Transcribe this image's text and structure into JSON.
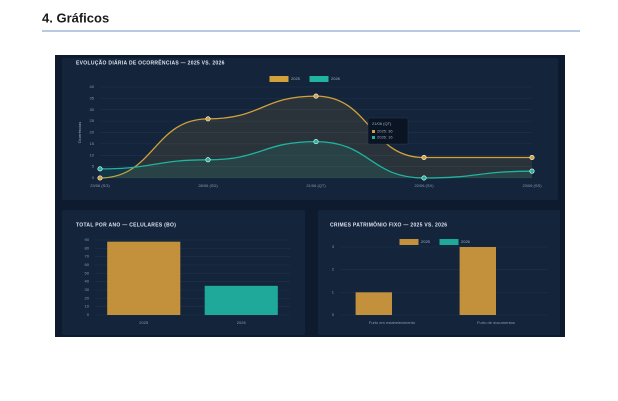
{
  "heading": "4. Gráficos",
  "chart_data": [
    {
      "type": "line",
      "title": "EVOLUÇÃO DIÁRIA DE OCORRÊNCIAS — 2025 VS. 2026",
      "y_label": "Ocorrências",
      "categories": [
        "23/06 (SG)",
        "28/06 (SD)",
        "21/06 (QT)",
        "22/06 (SX)",
        "23/06 (SS)"
      ],
      "series": [
        {
          "name": "2025",
          "color": "#d2a23a",
          "values": [
            0,
            26,
            36,
            9,
            9
          ]
        },
        {
          "name": "2026",
          "color": "#1fb3a0",
          "values": [
            4,
            8,
            16,
            0,
            3
          ]
        }
      ],
      "ylim": [
        0,
        40
      ],
      "yticks": [
        0,
        5,
        10,
        15,
        20,
        25,
        30,
        35,
        40
      ],
      "grid": true,
      "legend": "top",
      "tooltip": {
        "title": "21/06 (QT)",
        "items": [
          "2025: 36",
          "2026: 16"
        ]
      }
    },
    {
      "type": "bar",
      "title": "TOTAL POR ANO — CELULARES (BO)",
      "categories": [
        "2025",
        "2026"
      ],
      "values": [
        88,
        35
      ],
      "colors": [
        "#c3913c",
        "#1ea99b"
      ],
      "ylim": [
        0,
        90
      ],
      "yticks": [
        0,
        10,
        20,
        30,
        40,
        50,
        60,
        70,
        80,
        90
      ],
      "grid": true
    },
    {
      "type": "bar",
      "title": "CRIMES PATRIMÔNIO FIXO — 2025 VS. 2026",
      "categories": [
        "Furto em estabelecimento",
        "Furto de documentos"
      ],
      "series": [
        {
          "name": "2025",
          "color": "#c3913c",
          "values": [
            1,
            3
          ]
        },
        {
          "name": "2026",
          "color": "#1ea99b",
          "values": [
            0,
            0
          ]
        }
      ],
      "ylim": [
        0,
        3
      ],
      "yticks": [
        0,
        1,
        2,
        3
      ],
      "grid": true,
      "legend": "top"
    }
  ]
}
